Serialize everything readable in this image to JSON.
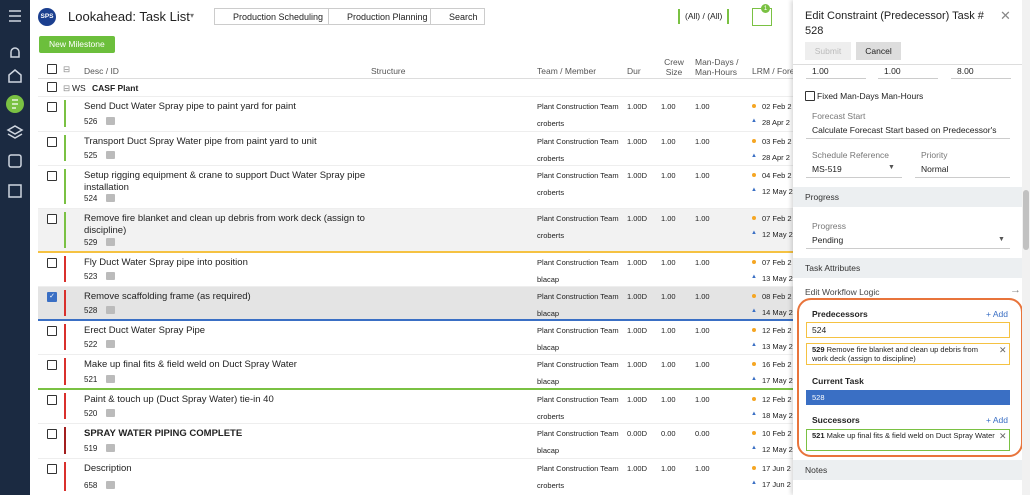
{
  "header": {
    "logo": "SPS",
    "title": "Lookahead: Task List",
    "buttons": [
      "Production Scheduling",
      "Production Planning",
      "Search"
    ],
    "filter": "(All) / (All)",
    "filter_badge": "1"
  },
  "toolbar": {
    "new_milestone": "New Milestone"
  },
  "table": {
    "columns": {
      "desc": "Desc / ID",
      "structure": "Structure",
      "team": "Team / Member",
      "dur": "Dur",
      "crew": "Crew Size",
      "man": "Man-Days / Man-Hours",
      "lrm": "LRM / Forec"
    },
    "group": {
      "level": "WS",
      "name": "CASF Plant"
    },
    "rows": [
      {
        "desc": "Send Duct Water Spray pipe to paint yard for paint",
        "id": "526",
        "team": "Plant Construction Team",
        "member": "croberts",
        "dur": "1.00D",
        "crew": "1.00",
        "man": "1.00",
        "lrm": "02 Feb 2",
        "forecast": "28 Apr 2",
        "bar": "#7ac143"
      },
      {
        "desc": "Transport Duct Spray Water pipe from paint yard to unit",
        "id": "525",
        "team": "Plant Construction Team",
        "member": "croberts",
        "dur": "1.00D",
        "crew": "1.00",
        "man": "1.00",
        "lrm": "03 Feb 2",
        "forecast": "28 Apr 2",
        "bar": "#7ac143"
      },
      {
        "desc": "Setup rigging equipment & crane to support Duct Water Spray pipe installation",
        "id": "524",
        "team": "Plant Construction Team",
        "member": "croberts",
        "dur": "1.00D",
        "crew": "1.00",
        "man": "1.00",
        "lrm": "04 Feb 2",
        "forecast": "12 May 2",
        "bar": "#7ac143"
      },
      {
        "desc": "Remove fire blanket and clean up debris from work deck (assign to discipline)",
        "id": "529",
        "team": "Plant Construction Team",
        "member": "croberts",
        "dur": "1.00D",
        "crew": "1.00",
        "man": "1.00",
        "lrm": "07 Feb 2",
        "forecast": "12 May 2",
        "bar": "#7ac143",
        "background": "#f2f2f2",
        "divider": "#f5c242"
      },
      {
        "desc": "Fly Duct Water Spray pipe into position",
        "id": "523",
        "team": "Plant Construction Team",
        "member": "blacap",
        "dur": "1.00D",
        "crew": "1.00",
        "man": "1.00",
        "lrm": "07 Feb 2",
        "forecast": "13 May 2",
        "bar": "#d9302c"
      },
      {
        "desc": "Remove scaffolding frame (as required)",
        "id": "528",
        "team": "Plant Construction Team",
        "member": "blacap",
        "dur": "1.00D",
        "crew": "1.00",
        "man": "1.00",
        "lrm": "08 Feb 2",
        "forecast": "14 May 2",
        "bar": "#d9302c",
        "background": "#e4e4e4",
        "checked": true,
        "divider": "#3a6fc4"
      },
      {
        "desc": "Erect Duct Water Spray Pipe",
        "id": "522",
        "team": "Plant Construction Team",
        "member": "blacap",
        "dur": "1.00D",
        "crew": "1.00",
        "man": "1.00",
        "lrm": "12 Feb 2",
        "forecast": "13 May 2",
        "bar": "#d9302c"
      },
      {
        "desc": "Make up final fits & field weld on Duct Spray Water",
        "id": "521",
        "team": "Plant Construction Team",
        "member": "blacap",
        "dur": "1.00D",
        "crew": "1.00",
        "man": "1.00",
        "lrm": "16 Feb 2",
        "forecast": "17 May 2",
        "bar": "#d9302c",
        "divider": "#7ac143"
      },
      {
        "desc": "Paint & touch up (Duct Spray Water) tie-in 40",
        "id": "520",
        "team": "Plant Construction Team",
        "member": "croberts",
        "dur": "1.00D",
        "crew": "1.00",
        "man": "1.00",
        "lrm": "12 Feb 2",
        "forecast": "18 May 2",
        "bar": "#d9302c"
      },
      {
        "desc": "SPRAY WATER PIPING COMPLETE",
        "id": "519",
        "team": "Plant Construction Team",
        "member": "blacap",
        "dur": "0.00D",
        "crew": "0.00",
        "man": "0.00",
        "lrm": "10 Feb 2",
        "forecast": "12 May 2",
        "bar": "#a31f1f",
        "bold": true
      },
      {
        "desc": "Description",
        "id": "658",
        "team": "Plant Construction Team",
        "member": "croberts",
        "dur": "1.00D",
        "crew": "1.00",
        "man": "1.00",
        "lrm": "17 Jun 2",
        "forecast": "17 Jun 2",
        "bar": "#d9302c"
      }
    ]
  },
  "panel": {
    "title": "Edit Constraint (Predecessor) Task # 528",
    "submit": "Submit",
    "cancel": "Cancel",
    "fields": [
      "1.00",
      "1.00",
      "8.00"
    ],
    "fixed": "Fixed Man-Days Man-Hours",
    "forecast_label": "Forecast Start",
    "forecast_value": "Calculate Forecast Start based on Predecessor's",
    "schedule_label": "Schedule Reference",
    "schedule_value": "MS-519",
    "priority_label": "Priority",
    "priority_value": "Normal",
    "progress_section": "Progress",
    "progress_label": "Progress",
    "progress_value": "Pending",
    "attributes_section": "Task Attributes",
    "workflow": "Edit Workflow Logic",
    "predecessors": "Predecessors",
    "add": "+ Add",
    "pred_input": "524",
    "pred_item": {
      "id": "529",
      "text": "Remove fire blanket and clean up debris from work deck (assign to discipline)"
    },
    "current": "Current Task",
    "current_value": "528",
    "successors": "Successors",
    "succ_item": {
      "id": "521",
      "text": "Make up final fits & field weld on Duct Spray Water"
    },
    "notes": "Notes"
  }
}
